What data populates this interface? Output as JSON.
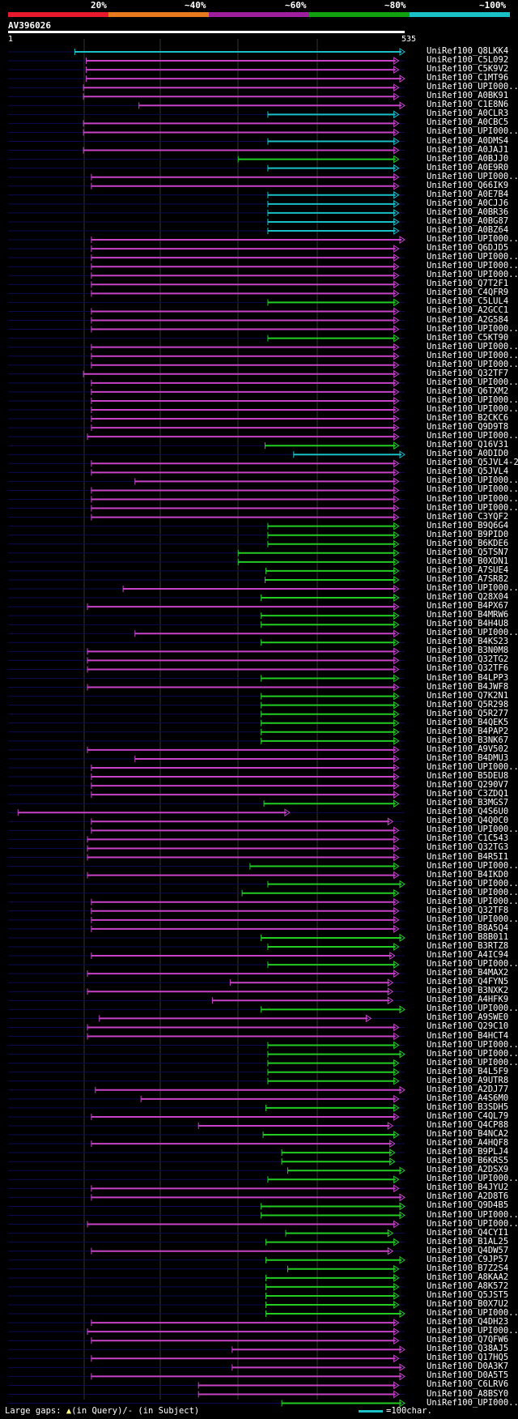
{
  "header": {
    "query_id": "AV396026",
    "query_start": "1",
    "query_end": "535",
    "percent_labels": [
      "20%",
      "~40%",
      "~60%",
      "~80%",
      "~100%"
    ],
    "band_colors": [
      "#e8192c",
      "#e87a1e",
      "#9e1e9e",
      "#10a010",
      "#19c0c8"
    ]
  },
  "colors": {
    "magenta": "#c842c8",
    "green": "#22cc22",
    "cyan": "#19c0c8",
    "marker": "#ffff88"
  },
  "legend": {
    "gaps_text": "Large gaps:",
    "query_gap": "(in Query)/",
    "subject_gap": "- (in Subject)",
    "scale_text": "=100char."
  },
  "hits": [
    {
      "label": "UniRef100_Q8LKK4",
      "color": "cyan",
      "start": 0.168,
      "end": 1.0
    },
    {
      "label": "UniRef100_C5L092",
      "color": "magenta",
      "start": 0.197,
      "end": 0.985
    },
    {
      "label": "UniRef100_C5K9V2",
      "color": "magenta",
      "start": 0.197,
      "end": 0.985
    },
    {
      "label": "UniRef100_C1MT96",
      "color": "magenta",
      "start": 0.197,
      "end": 1.0
    },
    {
      "label": "UniRef100_UPI000...",
      "color": "magenta",
      "start": 0.19,
      "end": 0.985
    },
    {
      "label": "UniRef100_A0BK91",
      "color": "magenta",
      "start": 0.19,
      "end": 0.985
    },
    {
      "label": "UniRef100_C1E8N6",
      "color": "magenta",
      "start": 0.33,
      "end": 1.0
    },
    {
      "label": "UniRef100_A0CLR3",
      "color": "cyan",
      "start": 0.655,
      "end": 0.985
    },
    {
      "label": "UniRef100_A0CBC5",
      "color": "magenta",
      "start": 0.19,
      "end": 0.985
    },
    {
      "label": "UniRef100_UPI000...",
      "color": "magenta",
      "start": 0.19,
      "end": 0.985
    },
    {
      "label": "UniRef100_A0DMS4",
      "color": "cyan",
      "start": 0.655,
      "end": 0.985
    },
    {
      "label": "UniRef100_A0JAJ1",
      "color": "magenta",
      "start": 0.19,
      "end": 0.985
    },
    {
      "label": "UniRef100_A0BJJ0",
      "color": "green",
      "start": 0.58,
      "end": 0.985
    },
    {
      "label": "UniRef100_A0E9R0",
      "color": "cyan",
      "start": 0.655,
      "end": 0.985
    },
    {
      "label": "UniRef100_UPI000...",
      "color": "magenta",
      "start": 0.21,
      "end": 0.985
    },
    {
      "label": "UniRef100_Q66IK9",
      "color": "magenta",
      "start": 0.21,
      "end": 0.985
    },
    {
      "label": "UniRef100_A0E7B4",
      "color": "cyan",
      "start": 0.655,
      "end": 0.985
    },
    {
      "label": "UniRef100_A0CJJ6",
      "color": "cyan",
      "start": 0.655,
      "end": 0.985
    },
    {
      "label": "UniRef100_A0BR36",
      "color": "cyan",
      "start": 0.655,
      "end": 0.985
    },
    {
      "label": "UniRef100_A0BG87",
      "color": "cyan",
      "start": 0.655,
      "end": 0.985
    },
    {
      "label": "UniRef100_A0BZ64",
      "color": "cyan",
      "start": 0.655,
      "end": 0.985
    },
    {
      "label": "UniRef100_UPI000...",
      "color": "magenta",
      "start": 0.21,
      "end": 1.0
    },
    {
      "label": "UniRef100_Q6DJD5",
      "color": "magenta",
      "start": 0.21,
      "end": 0.985
    },
    {
      "label": "UniRef100_UPI000...",
      "color": "magenta",
      "start": 0.21,
      "end": 0.985
    },
    {
      "label": "UniRef100_UPI000...",
      "color": "magenta",
      "start": 0.21,
      "end": 0.985
    },
    {
      "label": "UniRef100_UPI000...",
      "color": "magenta",
      "start": 0.21,
      "end": 0.985
    },
    {
      "label": "UniRef100_Q7T2F1",
      "color": "magenta",
      "start": 0.21,
      "end": 0.985
    },
    {
      "label": "UniRef100_C4QFR9",
      "color": "magenta",
      "start": 0.21,
      "end": 0.985
    },
    {
      "label": "UniRef100_C5LUL4",
      "color": "green",
      "start": 0.655,
      "end": 0.985
    },
    {
      "label": "UniRef100_A2GCC1",
      "color": "magenta",
      "start": 0.21,
      "end": 0.985
    },
    {
      "label": "UniRef100_A2G584",
      "color": "magenta",
      "start": 0.21,
      "end": 0.985
    },
    {
      "label": "UniRef100_UPI000...",
      "color": "magenta",
      "start": 0.21,
      "end": 0.985
    },
    {
      "label": "UniRef100_C5KT90",
      "color": "green",
      "start": 0.655,
      "end": 0.985
    },
    {
      "label": "UniRef100_UPI000...",
      "color": "magenta",
      "start": 0.21,
      "end": 0.985
    },
    {
      "label": "UniRef100_UPI000...",
      "color": "magenta",
      "start": 0.21,
      "end": 0.985
    },
    {
      "label": "UniRef100_UPI000...",
      "color": "magenta",
      "start": 0.21,
      "end": 0.985
    },
    {
      "label": "UniRef100_Q32TF7",
      "color": "magenta",
      "start": 0.19,
      "end": 0.985
    },
    {
      "label": "UniRef100_UPI000...",
      "color": "magenta",
      "start": 0.21,
      "end": 0.985
    },
    {
      "label": "UniRef100_Q6TXM2",
      "color": "magenta",
      "start": 0.21,
      "end": 0.985
    },
    {
      "label": "UniRef100_UPI000...",
      "color": "magenta",
      "start": 0.21,
      "end": 0.985
    },
    {
      "label": "UniRef100_UPI000...",
      "color": "magenta",
      "start": 0.21,
      "end": 0.985
    },
    {
      "label": "UniRef100_B2CKC6",
      "color": "magenta",
      "start": 0.21,
      "end": 0.985
    },
    {
      "label": "UniRef100_Q9D9T8",
      "color": "magenta",
      "start": 0.21,
      "end": 0.985
    },
    {
      "label": "UniRef100_UPI000...",
      "color": "magenta",
      "start": 0.2,
      "end": 0.985
    },
    {
      "label": "UniRef100_Q16V31",
      "color": "green",
      "start": 0.648,
      "end": 0.985
    },
    {
      "label": "UniRef100_A0DID0",
      "color": "cyan",
      "start": 0.72,
      "end": 1.0
    },
    {
      "label": "UniRef100_Q5JVL4-2",
      "color": "magenta",
      "start": 0.21,
      "end": 0.985
    },
    {
      "label": "UniRef100_Q5JVL4",
      "color": "magenta",
      "start": 0.21,
      "end": 0.985
    },
    {
      "label": "UniRef100_UPI000...",
      "color": "magenta",
      "start": 0.32,
      "end": 0.985
    },
    {
      "label": "UniRef100_UPI000...",
      "color": "magenta",
      "start": 0.21,
      "end": 0.985
    },
    {
      "label": "UniRef100_UPI000...",
      "color": "magenta",
      "start": 0.21,
      "end": 0.985
    },
    {
      "label": "UniRef100_UPI000...",
      "color": "magenta",
      "start": 0.21,
      "end": 0.985
    },
    {
      "label": "UniRef100_C3YQF2",
      "color": "magenta",
      "start": 0.21,
      "end": 0.985
    },
    {
      "label": "UniRef100_B9Q6G4",
      "color": "green",
      "start": 0.655,
      "end": 0.985
    },
    {
      "label": "UniRef100_B9PID0",
      "color": "green",
      "start": 0.655,
      "end": 0.985
    },
    {
      "label": "UniRef100_B6KDE6",
      "color": "green",
      "start": 0.655,
      "end": 0.985
    },
    {
      "label": "UniRef100_Q5TSN7",
      "color": "green",
      "start": 0.58,
      "end": 0.985
    },
    {
      "label": "UniRef100_B0XDN1",
      "color": "green",
      "start": 0.58,
      "end": 0.985
    },
    {
      "label": "UniRef100_A7SUE4",
      "color": "green",
      "start": 0.65,
      "end": 0.985
    },
    {
      "label": "UniRef100_A7SR82",
      "color": "green",
      "start": 0.648,
      "end": 0.985
    },
    {
      "label": "UniRef100_UPI000...",
      "color": "magenta",
      "start": 0.29,
      "end": 0.985
    },
    {
      "label": "UniRef100_Q28X04",
      "color": "green",
      "start": 0.638,
      "end": 0.985
    },
    {
      "label": "UniRef100_B4PX67",
      "color": "magenta",
      "start": 0.2,
      "end": 0.985
    },
    {
      "label": "UniRef100_B4MRW6",
      "color": "green",
      "start": 0.638,
      "end": 0.985
    },
    {
      "label": "UniRef100_B4H4U8",
      "color": "green",
      "start": 0.638,
      "end": 0.985
    },
    {
      "label": "UniRef100_UPI000...",
      "color": "magenta",
      "start": 0.32,
      "end": 0.985
    },
    {
      "label": "UniRef100_B4KS23",
      "color": "green",
      "start": 0.638,
      "end": 0.985
    },
    {
      "label": "UniRef100_B3N0M8",
      "color": "magenta",
      "start": 0.2,
      "end": 0.985
    },
    {
      "label": "UniRef100_Q32TG2",
      "color": "magenta",
      "start": 0.2,
      "end": 0.985
    },
    {
      "label": "UniRef100_Q32TF6",
      "color": "magenta",
      "start": 0.2,
      "end": 0.985
    },
    {
      "label": "UniRef100_B4LPP3",
      "color": "green",
      "start": 0.638,
      "end": 0.985
    },
    {
      "label": "UniRef100_B4JWF8",
      "color": "magenta",
      "start": 0.2,
      "end": 0.985
    },
    {
      "label": "UniRef100_Q7K2N1",
      "color": "green",
      "start": 0.638,
      "end": 0.985
    },
    {
      "label": "UniRef100_Q5R298",
      "color": "green",
      "start": 0.638,
      "end": 0.985
    },
    {
      "label": "UniRef100_Q5R277",
      "color": "green",
      "start": 0.638,
      "end": 0.985
    },
    {
      "label": "UniRef100_B4QEK5",
      "color": "green",
      "start": 0.638,
      "end": 0.985
    },
    {
      "label": "UniRef100_B4PAP2",
      "color": "green",
      "start": 0.638,
      "end": 0.985
    },
    {
      "label": "UniRef100_B3NK67",
      "color": "green",
      "start": 0.638,
      "end": 0.985
    },
    {
      "label": "UniRef100_A9V502",
      "color": "magenta",
      "start": 0.2,
      "end": 0.985
    },
    {
      "label": "UniRef100_B4DMU3",
      "color": "magenta",
      "start": 0.32,
      "end": 0.985
    },
    {
      "label": "UniRef100_UPI000...",
      "color": "magenta",
      "start": 0.21,
      "end": 0.985
    },
    {
      "label": "UniRef100_B5DEU8",
      "color": "magenta",
      "start": 0.21,
      "end": 0.985
    },
    {
      "label": "UniRef100_Q290V7",
      "color": "magenta",
      "start": 0.21,
      "end": 0.985
    },
    {
      "label": "UniRef100_C3ZDQ1",
      "color": "magenta",
      "start": 0.21,
      "end": 0.985
    },
    {
      "label": "UniRef100_B3MGS7",
      "color": "green",
      "start": 0.645,
      "end": 0.985
    },
    {
      "label": "UniRef100_Q4S6U0",
      "color": "magenta",
      "start": 0.025,
      "end": 0.71
    },
    {
      "label": "UniRef100_Q4Q0C0",
      "color": "magenta",
      "start": 0.21,
      "end": 0.97
    },
    {
      "label": "UniRef100_UPI000...",
      "color": "magenta",
      "start": 0.21,
      "end": 0.985
    },
    {
      "label": "UniRef100_C1C543",
      "color": "magenta",
      "start": 0.2,
      "end": 0.985
    },
    {
      "label": "UniRef100_Q32TG3",
      "color": "magenta",
      "start": 0.2,
      "end": 0.985
    },
    {
      "label": "UniRef100_B4R5I1",
      "color": "magenta",
      "start": 0.2,
      "end": 0.985
    },
    {
      "label": "UniRef100_UPI000...",
      "color": "green",
      "start": 0.61,
      "end": 0.985
    },
    {
      "label": "UniRef100_B4IKD0",
      "color": "magenta",
      "start": 0.2,
      "end": 0.985
    },
    {
      "label": "UniRef100_UPI000...",
      "color": "green",
      "start": 0.655,
      "end": 1.0
    },
    {
      "label": "UniRef100_UPI000...",
      "color": "green",
      "start": 0.59,
      "end": 0.985
    },
    {
      "label": "UniRef100_UPI000...",
      "color": "magenta",
      "start": 0.21,
      "end": 0.985
    },
    {
      "label": "UniRef100_Q32TF8",
      "color": "magenta",
      "start": 0.21,
      "end": 0.985
    },
    {
      "label": "UniRef100_UPI000...",
      "color": "magenta",
      "start": 0.21,
      "end": 0.985
    },
    {
      "label": "UniRef100_B8A5Q4",
      "color": "magenta",
      "start": 0.21,
      "end": 0.985
    },
    {
      "label": "UniRef100_B8B011",
      "color": "green",
      "start": 0.638,
      "end": 1.0
    },
    {
      "label": "UniRef100_B3RTZ8",
      "color": "green",
      "start": 0.655,
      "end": 0.985
    },
    {
      "label": "UniRef100_A4IC94",
      "color": "magenta",
      "start": 0.21,
      "end": 0.975
    },
    {
      "label": "UniRef100_UPI000...",
      "color": "green",
      "start": 0.655,
      "end": 0.985
    },
    {
      "label": "UniRef100_B4MAX2",
      "color": "magenta",
      "start": 0.2,
      "end": 0.985
    },
    {
      "label": "UniRef100_Q4FYN5",
      "color": "magenta",
      "start": 0.56,
      "end": 0.97
    },
    {
      "label": "UniRef100_B3NXK2",
      "color": "magenta",
      "start": 0.2,
      "end": 0.97
    },
    {
      "label": "UniRef100_A4HFK9",
      "color": "magenta",
      "start": 0.515,
      "end": 0.97
    },
    {
      "label": "UniRef100_UPI000...",
      "color": "green",
      "start": 0.638,
      "end": 1.0
    },
    {
      "label": "UniRef100_A9SWE0",
      "color": "magenta",
      "start": 0.23,
      "end": 0.915
    },
    {
      "label": "UniRef100_Q29C10",
      "color": "magenta",
      "start": 0.2,
      "end": 0.985
    },
    {
      "label": "UniRef100_B4HCT4",
      "color": "magenta",
      "start": 0.2,
      "end": 0.985
    },
    {
      "label": "UniRef100_UPI000...",
      "color": "green",
      "start": 0.655,
      "end": 0.985
    },
    {
      "label": "UniRef100_UPI000...",
      "color": "green",
      "start": 0.655,
      "end": 1.0
    },
    {
      "label": "UniRef100_UPI000...",
      "color": "green",
      "start": 0.655,
      "end": 0.985
    },
    {
      "label": "UniRef100_B4L5F9",
      "color": "green",
      "start": 0.655,
      "end": 0.985
    },
    {
      "label": "UniRef100_A9UTR8",
      "color": "green",
      "start": 0.655,
      "end": 0.985
    },
    {
      "label": "UniRef100_A2DJ77",
      "color": "magenta",
      "start": 0.22,
      "end": 1.0
    },
    {
      "label": "UniRef100_A4S6M0",
      "color": "magenta",
      "start": 0.335,
      "end": 0.985
    },
    {
      "label": "UniRef100_B3SDH5",
      "color": "green",
      "start": 0.65,
      "end": 0.985
    },
    {
      "label": "UniRef100_C4QL79",
      "color": "magenta",
      "start": 0.21,
      "end": 0.985
    },
    {
      "label": "UniRef100_Q4CP88",
      "color": "magenta",
      "start": 0.48,
      "end": 0.97
    },
    {
      "label": "UniRef100_B4NCA2",
      "color": "green",
      "start": 0.643,
      "end": 0.985
    },
    {
      "label": "UniRef100_A4HQF8",
      "color": "magenta",
      "start": 0.21,
      "end": 0.975
    },
    {
      "label": "UniRef100_B9PLJ4",
      "color": "green",
      "start": 0.69,
      "end": 0.975
    },
    {
      "label": "UniRef100_B6KRS5",
      "color": "green",
      "start": 0.69,
      "end": 0.975
    },
    {
      "label": "UniRef100_A2DSX9",
      "color": "green",
      "start": 0.705,
      "end": 1.0
    },
    {
      "label": "UniRef100_UPI000...",
      "color": "green",
      "start": 0.655,
      "end": 0.985
    },
    {
      "label": "UniRef100_B4JYU2",
      "color": "magenta",
      "start": 0.21,
      "end": 0.985
    },
    {
      "label": "UniRef100_A2D8T6",
      "color": "magenta",
      "start": 0.21,
      "end": 1.0
    },
    {
      "label": "UniRef100_Q9D4B5",
      "color": "green",
      "start": 0.638,
      "end": 1.0
    },
    {
      "label": "UniRef100_UPI000...",
      "color": "green",
      "start": 0.638,
      "end": 1.0
    },
    {
      "label": "UniRef100_UPI000...",
      "color": "magenta",
      "start": 0.2,
      "end": 0.985
    },
    {
      "label": "UniRef100_Q4CYI1",
      "color": "green",
      "start": 0.7,
      "end": 0.97
    },
    {
      "label": "UniRef100_B1AL25",
      "color": "green",
      "start": 0.65,
      "end": 0.985
    },
    {
      "label": "UniRef100_Q4DW57",
      "color": "magenta",
      "start": 0.21,
      "end": 0.97
    },
    {
      "label": "UniRef100_C9JP57",
      "color": "green",
      "start": 0.65,
      "end": 1.0
    },
    {
      "label": "UniRef100_B7Z2S4",
      "color": "green",
      "start": 0.705,
      "end": 0.985
    },
    {
      "label": "UniRef100_A8KAA2",
      "color": "green",
      "start": 0.65,
      "end": 0.985
    },
    {
      "label": "UniRef100_A8K572",
      "color": "green",
      "start": 0.65,
      "end": 0.985
    },
    {
      "label": "UniRef100_Q5JST5",
      "color": "green",
      "start": 0.65,
      "end": 0.985
    },
    {
      "label": "UniRef100_B0X7U2",
      "color": "green",
      "start": 0.65,
      "end": 0.985
    },
    {
      "label": "UniRef100_UPI000...",
      "color": "green",
      "start": 0.65,
      "end": 1.0
    },
    {
      "label": "UniRef100_Q4DH23",
      "color": "magenta",
      "start": 0.21,
      "end": 0.985
    },
    {
      "label": "UniRef100_UPI000...",
      "color": "magenta",
      "start": 0.2,
      "end": 0.985
    },
    {
      "label": "UniRef100_Q7QFW6",
      "color": "magenta",
      "start": 0.21,
      "end": 0.985
    },
    {
      "label": "UniRef100_Q38AJ5",
      "color": "magenta",
      "start": 0.565,
      "end": 1.0
    },
    {
      "label": "UniRef100_Q17HQ5",
      "color": "magenta",
      "start": 0.21,
      "end": 0.985
    },
    {
      "label": "UniRef100_D0A3K7",
      "color": "magenta",
      "start": 0.565,
      "end": 1.0
    },
    {
      "label": "UniRef100_D0A5T5",
      "color": "magenta",
      "start": 0.21,
      "end": 1.0
    },
    {
      "label": "UniRef100_C6LRV6",
      "color": "magenta",
      "start": 0.48,
      "end": 0.985
    },
    {
      "label": "UniRef100_A8BSY0",
      "color": "magenta",
      "start": 0.48,
      "end": 0.985
    },
    {
      "label": "UniRef100_UPI000...",
      "color": "green",
      "start": 0.69,
      "end": 1.0
    }
  ]
}
